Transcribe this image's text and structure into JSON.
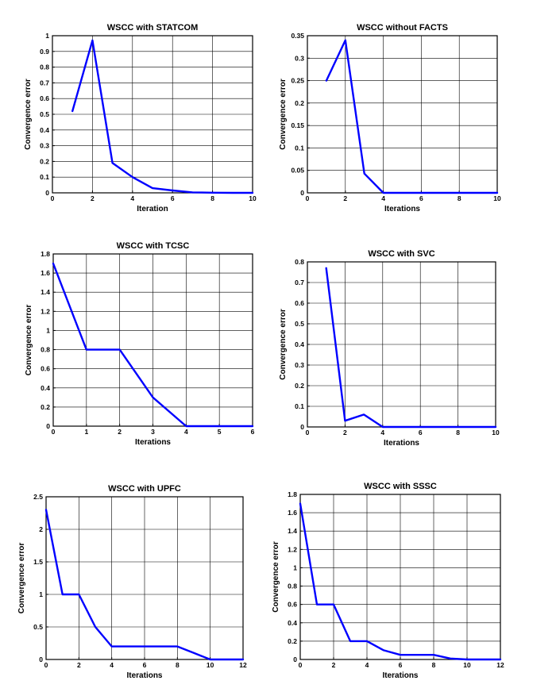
{
  "colors": {
    "series": "#0000ff",
    "axes": "#000000",
    "grid": "#000000",
    "background": "#ffffff"
  },
  "chart_data": [
    {
      "type": "line",
      "title": "WSCC with STATCOM",
      "xlabel": "Iteration",
      "ylabel": "Convergence error",
      "xlim": [
        0,
        10
      ],
      "ylim": [
        0,
        1
      ],
      "xticks": [
        "0",
        "2",
        "4",
        "6",
        "8",
        "10"
      ],
      "yticks": [
        "0",
        "0.1",
        "0.2",
        "0.3",
        "0.4",
        "0.5",
        "0.6",
        "0.7",
        "0.8",
        "0.9",
        "1"
      ],
      "grid": true,
      "x": [
        1,
        2,
        3,
        4,
        5,
        6,
        7,
        8,
        9,
        10
      ],
      "y": [
        0.52,
        0.97,
        0.19,
        0.1,
        0.03,
        0.015,
        0.003,
        0.001,
        0.0,
        0.0
      ]
    },
    {
      "type": "line",
      "title": "WSCC without FACTS",
      "xlabel": "Iterations",
      "ylabel": "Convergence error",
      "xlim": [
        0,
        10
      ],
      "ylim": [
        0,
        0.35
      ],
      "xticks": [
        "0",
        "2",
        "4",
        "6",
        "8",
        "10"
      ],
      "yticks": [
        "0",
        "0.05",
        "0.1",
        "0.15",
        "0.2",
        "0.25",
        "0.3",
        "0.35"
      ],
      "grid": true,
      "x": [
        1,
        2,
        3,
        4,
        5,
        6,
        7,
        8,
        9,
        10
      ],
      "y": [
        0.25,
        0.34,
        0.043,
        0.0,
        0.0,
        0.0,
        0.0,
        0.0,
        0.0,
        0.0
      ]
    },
    {
      "type": "line",
      "title": "WSCC with TCSC",
      "xlabel": "Iterations",
      "ylabel": "Convergence error",
      "xlim": [
        0,
        6
      ],
      "ylim": [
        0,
        1.8
      ],
      "xticks": [
        "0",
        "1",
        "2",
        "3",
        "4",
        "5",
        "6"
      ],
      "yticks": [
        "0",
        "0.2",
        "0.4",
        "0.6",
        "0.8",
        "1",
        "1.2",
        "1.4",
        "1.6",
        "1.8"
      ],
      "grid": true,
      "x": [
        0,
        1,
        2,
        3,
        4,
        5,
        6
      ],
      "y": [
        1.7,
        0.8,
        0.8,
        0.3,
        0.0,
        0.0,
        0.0
      ]
    },
    {
      "type": "line",
      "title": "WSCC with SVC",
      "xlabel": "Iterations",
      "ylabel": "Convergence error",
      "xlim": [
        0,
        10
      ],
      "ylim": [
        0,
        0.8
      ],
      "xticks": [
        "0",
        "2",
        "4",
        "6",
        "8",
        "10"
      ],
      "yticks": [
        "0",
        "0.1",
        "0.2",
        "0.3",
        "0.4",
        "0.5",
        "0.6",
        "0.7",
        "0.8"
      ],
      "grid": true,
      "x": [
        1,
        2,
        3,
        4,
        5,
        6,
        7,
        8,
        9,
        10
      ],
      "y": [
        0.77,
        0.03,
        0.06,
        0.0,
        0.0,
        0.0,
        0.0,
        0.0,
        0.0,
        0.0
      ]
    },
    {
      "type": "line",
      "title": "WSCC with UPFC",
      "xlabel": "Iterations",
      "ylabel": "Convergence error",
      "xlim": [
        0,
        12
      ],
      "ylim": [
        0,
        2.5
      ],
      "xticks": [
        "0",
        "2",
        "4",
        "6",
        "8",
        "10",
        "12"
      ],
      "yticks": [
        "0",
        "0.5",
        "1",
        "1.5",
        "2",
        "2.5"
      ],
      "grid": true,
      "x": [
        0,
        1,
        2,
        3,
        4,
        5,
        6,
        7,
        8,
        9,
        10,
        11,
        12
      ],
      "y": [
        2.3,
        1.0,
        1.0,
        0.5,
        0.2,
        0.2,
        0.2,
        0.2,
        0.2,
        0.1,
        0.0,
        0.0,
        0.0
      ]
    },
    {
      "type": "line",
      "title": "WSCC with SSSC",
      "xlabel": "Iterations",
      "ylabel": "Convergence error",
      "xlim": [
        0,
        12
      ],
      "ylim": [
        0,
        1.8
      ],
      "xticks": [
        "0",
        "2",
        "4",
        "6",
        "8",
        "10",
        "12"
      ],
      "yticks": [
        "0",
        "0.2",
        "0.4",
        "0.6",
        "0.8",
        "1",
        "1.2",
        "1.4",
        "1.6",
        "1.8"
      ],
      "grid": true,
      "x": [
        0,
        1,
        2,
        3,
        4,
        5,
        6,
        7,
        8,
        9,
        10,
        11,
        12
      ],
      "y": [
        1.7,
        0.6,
        0.6,
        0.2,
        0.2,
        0.1,
        0.05,
        0.05,
        0.05,
        0.01,
        0.0,
        0.0,
        0.0
      ]
    }
  ]
}
